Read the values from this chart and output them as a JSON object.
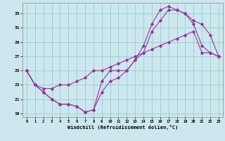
{
  "xlabel": "Windchill (Refroidissement éolien,°C)",
  "bg_color": "#cce8ee",
  "grid_color": "#99cccc",
  "line_color": "#993399",
  "xlim": [
    -0.5,
    23.5
  ],
  "ylim": [
    18.5,
    34.5
  ],
  "xticks": [
    0,
    1,
    2,
    3,
    4,
    5,
    6,
    7,
    8,
    9,
    10,
    11,
    12,
    13,
    14,
    15,
    16,
    17,
    18,
    19,
    20,
    21,
    22,
    23
  ],
  "yticks": [
    19,
    21,
    23,
    25,
    27,
    29,
    31,
    33
  ],
  "line1_x": [
    0,
    1,
    2,
    3,
    4,
    5,
    6,
    7,
    8,
    9,
    10,
    11,
    12,
    13,
    14,
    15,
    16,
    17,
    18,
    19,
    20,
    21,
    22,
    23
  ],
  "line1_y": [
    25,
    23,
    22,
    21,
    20.3,
    20.3,
    20,
    19.2,
    19.5,
    23.5,
    25,
    25,
    25,
    26.5,
    27.5,
    30.5,
    32,
    33.5,
    33.5,
    33,
    31.5,
    28.5,
    27.5,
    27
  ],
  "line2_x": [
    0,
    1,
    2,
    3,
    4,
    5,
    6,
    7,
    8,
    9,
    10,
    11,
    12,
    13,
    14,
    15,
    16,
    17,
    18,
    19,
    20,
    21,
    22,
    23
  ],
  "line2_y": [
    25,
    23,
    22,
    21,
    20.3,
    20.3,
    20,
    19.2,
    19.5,
    22,
    23.5,
    24,
    25,
    26.5,
    28.5,
    31.5,
    33.5,
    34,
    33.5,
    33,
    32,
    31.5,
    30,
    27
  ],
  "line3_x": [
    0,
    1,
    2,
    3,
    4,
    5,
    6,
    7,
    8,
    9,
    10,
    11,
    12,
    13,
    14,
    15,
    16,
    17,
    18,
    19,
    20,
    21,
    22,
    23
  ],
  "line3_y": [
    25,
    23,
    22.5,
    22.5,
    23,
    23,
    23.5,
    24,
    25,
    25,
    25.5,
    26,
    26.5,
    27,
    27.5,
    28,
    28.5,
    29,
    29.5,
    30,
    30.5,
    27.5,
    27.5,
    27
  ]
}
